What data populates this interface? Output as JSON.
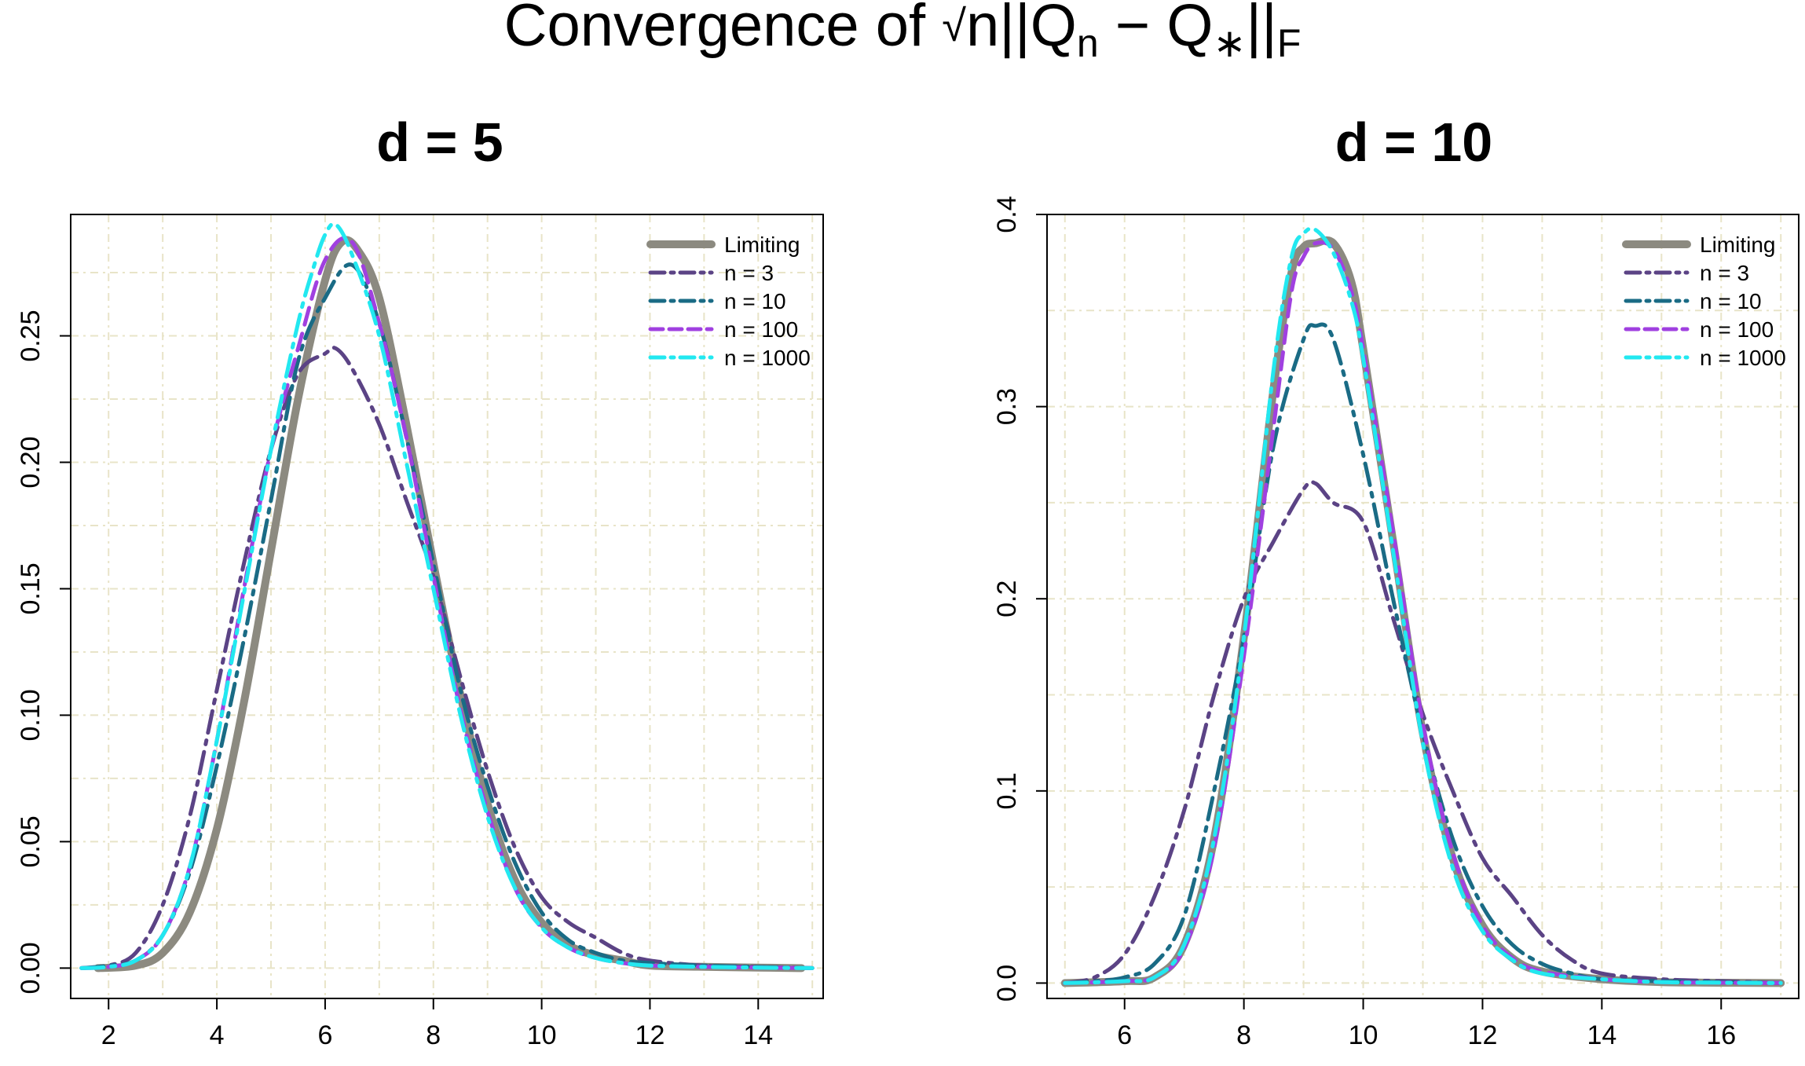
{
  "figure": {
    "title_prefix": "Convergence of ",
    "title_sqrt": "√",
    "title_n": "n",
    "title_norm_open": "||",
    "title_Q": "Q",
    "title_sub_n": "n",
    "title_minus": " − Q",
    "title_sub_star": "∗",
    "title_norm_close": "||",
    "title_sub_F": "F"
  },
  "legend_order": [
    "Limiting",
    "n = 3",
    "n = 10",
    "n = 100",
    "n = 1000"
  ],
  "series_style": {
    "Limiting": {
      "color": "#8c8a80",
      "dash": "solid",
      "width": 10
    },
    "n = 3": {
      "color": "#5b4385",
      "dash": "dashdot",
      "width": 5
    },
    "n = 10": {
      "color": "#1a6b85",
      "dash": "dashdot",
      "width": 5
    },
    "n = 100": {
      "color": "#a040e0",
      "dash": "dashed",
      "width": 5
    },
    "n = 1000": {
      "color": "#22e8f0",
      "dash": "dashdot",
      "width": 5
    }
  },
  "chart_data": [
    {
      "type": "line",
      "title": "d = 5",
      "xlabel": "",
      "ylabel": "",
      "xlim": [
        1.3,
        15.2
      ],
      "ylim": [
        -0.012,
        0.298
      ],
      "xticks": [
        2,
        4,
        6,
        8,
        10,
        12,
        14
      ],
      "yticks": [
        0.0,
        0.05,
        0.1,
        0.15,
        0.2,
        0.25
      ],
      "ytick_labels": [
        "0.00",
        "0.05",
        "0.10",
        "0.15",
        "0.20",
        "0.25"
      ],
      "grid": true,
      "legend_position": "top-right",
      "series": [
        {
          "name": "Limiting",
          "x": [
            1.8,
            2.5,
            3.0,
            3.5,
            4.0,
            4.5,
            5.0,
            5.5,
            6.0,
            6.3,
            6.6,
            7.0,
            7.5,
            8.0,
            8.5,
            9.0,
            9.5,
            10.0,
            10.5,
            11.0,
            11.5,
            12.0,
            13.0,
            14.0,
            14.8
          ],
          "y": [
            0.0,
            0.001,
            0.006,
            0.022,
            0.055,
            0.105,
            0.165,
            0.225,
            0.272,
            0.287,
            0.284,
            0.265,
            0.215,
            0.16,
            0.108,
            0.065,
            0.035,
            0.018,
            0.009,
            0.005,
            0.003,
            0.001,
            0.0005,
            0.0002,
            0.0
          ]
        },
        {
          "name": "n = 3",
          "x": [
            1.5,
            2.0,
            2.5,
            3.0,
            3.5,
            4.0,
            4.5,
            5.0,
            5.5,
            6.0,
            6.2,
            6.5,
            7.0,
            7.5,
            8.0,
            8.5,
            9.0,
            9.5,
            10.0,
            10.5,
            11.0,
            11.5,
            12.0,
            13.0,
            14.0,
            15.0
          ],
          "y": [
            0.0,
            0.001,
            0.006,
            0.025,
            0.06,
            0.11,
            0.16,
            0.205,
            0.235,
            0.243,
            0.245,
            0.237,
            0.215,
            0.185,
            0.155,
            0.115,
            0.078,
            0.048,
            0.028,
            0.018,
            0.012,
            0.006,
            0.003,
            0.001,
            0.0005,
            0.0
          ]
        },
        {
          "name": "n = 10",
          "x": [
            1.5,
            2.0,
            2.5,
            3.0,
            3.5,
            4.0,
            4.5,
            5.0,
            5.5,
            6.0,
            6.5,
            7.0,
            7.5,
            8.0,
            8.5,
            9.0,
            9.5,
            10.0,
            10.5,
            11.0,
            11.5,
            12.0,
            13.0,
            14.0,
            15.0
          ],
          "y": [
            0.0,
            0.001,
            0.003,
            0.013,
            0.038,
            0.08,
            0.13,
            0.185,
            0.24,
            0.265,
            0.278,
            0.255,
            0.21,
            0.16,
            0.11,
            0.072,
            0.042,
            0.022,
            0.011,
            0.006,
            0.003,
            0.002,
            0.001,
            0.0005,
            0.0
          ]
        },
        {
          "name": "n = 100",
          "x": [
            1.5,
            2.0,
            2.5,
            3.0,
            3.5,
            4.0,
            4.5,
            5.0,
            5.5,
            6.0,
            6.5,
            7.0,
            7.5,
            8.0,
            8.5,
            9.0,
            9.5,
            10.0,
            10.5,
            11.0,
            11.5,
            12.0,
            13.0,
            14.0,
            15.0
          ],
          "y": [
            0.0,
            0.0005,
            0.003,
            0.013,
            0.04,
            0.09,
            0.15,
            0.205,
            0.245,
            0.28,
            0.287,
            0.255,
            0.21,
            0.155,
            0.102,
            0.062,
            0.032,
            0.016,
            0.008,
            0.004,
            0.002,
            0.001,
            0.0005,
            0.0002,
            0.0
          ]
        },
        {
          "name": "n = 1000",
          "x": [
            1.5,
            2.0,
            2.5,
            3.0,
            3.5,
            4.0,
            4.5,
            5.0,
            5.5,
            5.8,
            6.0,
            6.2,
            6.5,
            7.0,
            7.5,
            8.0,
            8.5,
            9.0,
            9.5,
            10.0,
            10.5,
            11.0,
            11.5,
            12.0,
            13.0,
            14.0,
            15.0
          ],
          "y": [
            0.0,
            0.0005,
            0.003,
            0.013,
            0.04,
            0.09,
            0.148,
            0.205,
            0.255,
            0.278,
            0.29,
            0.294,
            0.282,
            0.25,
            0.2,
            0.15,
            0.1,
            0.06,
            0.032,
            0.016,
            0.008,
            0.004,
            0.002,
            0.001,
            0.0005,
            0.0002,
            0.0
          ]
        }
      ]
    },
    {
      "type": "line",
      "title": "d = 10",
      "xlabel": "",
      "ylabel": "",
      "xlim": [
        4.7,
        17.3
      ],
      "ylim": [
        -0.008,
        0.4
      ],
      "xticks": [
        6,
        8,
        10,
        12,
        14,
        16
      ],
      "yticks": [
        0.0,
        0.1,
        0.2,
        0.3,
        0.4
      ],
      "ytick_labels": [
        "0.0",
        "0.1",
        "0.2",
        "0.3",
        "0.4"
      ],
      "grid": true,
      "legend_position": "top-right",
      "series": [
        {
          "name": "Limiting",
          "x": [
            5.0,
            6.0,
            6.5,
            7.0,
            7.5,
            8.0,
            8.5,
            8.8,
            9.0,
            9.2,
            9.5,
            9.8,
            10.0,
            10.5,
            11.0,
            11.5,
            12.0,
            12.5,
            13.0,
            14.0,
            15.0,
            16.0,
            17.0
          ],
          "y": [
            0.0,
            0.001,
            0.003,
            0.02,
            0.075,
            0.18,
            0.31,
            0.37,
            0.383,
            0.385,
            0.385,
            0.365,
            0.33,
            0.23,
            0.13,
            0.065,
            0.03,
            0.013,
            0.006,
            0.002,
            0.0005,
            0.0002,
            0.0
          ]
        },
        {
          "name": "n = 3",
          "x": [
            5.0,
            5.5,
            6.0,
            6.5,
            7.0,
            7.5,
            8.0,
            8.5,
            9.0,
            9.2,
            9.5,
            10.0,
            10.5,
            11.0,
            11.5,
            12.0,
            12.5,
            13.0,
            13.5,
            14.0,
            15.0,
            16.0,
            17.0
          ],
          "y": [
            0.0,
            0.003,
            0.015,
            0.045,
            0.09,
            0.15,
            0.2,
            0.23,
            0.257,
            0.26,
            0.25,
            0.24,
            0.19,
            0.14,
            0.1,
            0.065,
            0.045,
            0.025,
            0.012,
            0.005,
            0.002,
            0.001,
            0.0
          ]
        },
        {
          "name": "n = 10",
          "x": [
            5.0,
            5.5,
            6.0,
            6.5,
            7.0,
            7.5,
            8.0,
            8.5,
            9.0,
            9.2,
            9.5,
            10.0,
            10.5,
            11.0,
            11.5,
            12.0,
            12.5,
            13.0,
            13.5,
            14.0,
            15.0,
            16.0,
            17.0
          ],
          "y": [
            0.0,
            0.001,
            0.003,
            0.01,
            0.035,
            0.1,
            0.18,
            0.28,
            0.335,
            0.342,
            0.335,
            0.275,
            0.2,
            0.13,
            0.075,
            0.04,
            0.02,
            0.01,
            0.005,
            0.002,
            0.001,
            0.0005,
            0.0
          ]
        },
        {
          "name": "n = 100",
          "x": [
            5.0,
            6.0,
            6.5,
            7.0,
            7.5,
            8.0,
            8.5,
            8.8,
            9.0,
            9.2,
            9.5,
            9.8,
            10.0,
            10.5,
            11.0,
            11.5,
            12.0,
            12.5,
            13.0,
            14.0,
            15.0,
            16.0,
            17.0
          ],
          "y": [
            0.0,
            0.001,
            0.003,
            0.018,
            0.07,
            0.17,
            0.29,
            0.36,
            0.378,
            0.385,
            0.382,
            0.36,
            0.33,
            0.235,
            0.135,
            0.068,
            0.03,
            0.013,
            0.006,
            0.002,
            0.0005,
            0.0002,
            0.0
          ]
        },
        {
          "name": "n = 1000",
          "x": [
            5.0,
            6.0,
            6.5,
            7.0,
            7.5,
            8.0,
            8.5,
            8.8,
            9.0,
            9.2,
            9.5,
            9.8,
            10.0,
            10.5,
            11.0,
            11.5,
            12.0,
            12.5,
            13.0,
            14.0,
            15.0,
            16.0,
            17.0
          ],
          "y": [
            0.0,
            0.001,
            0.003,
            0.02,
            0.075,
            0.18,
            0.32,
            0.378,
            0.39,
            0.392,
            0.38,
            0.355,
            0.325,
            0.225,
            0.125,
            0.06,
            0.027,
            0.012,
            0.005,
            0.002,
            0.0005,
            0.0002,
            0.0
          ]
        }
      ]
    }
  ]
}
